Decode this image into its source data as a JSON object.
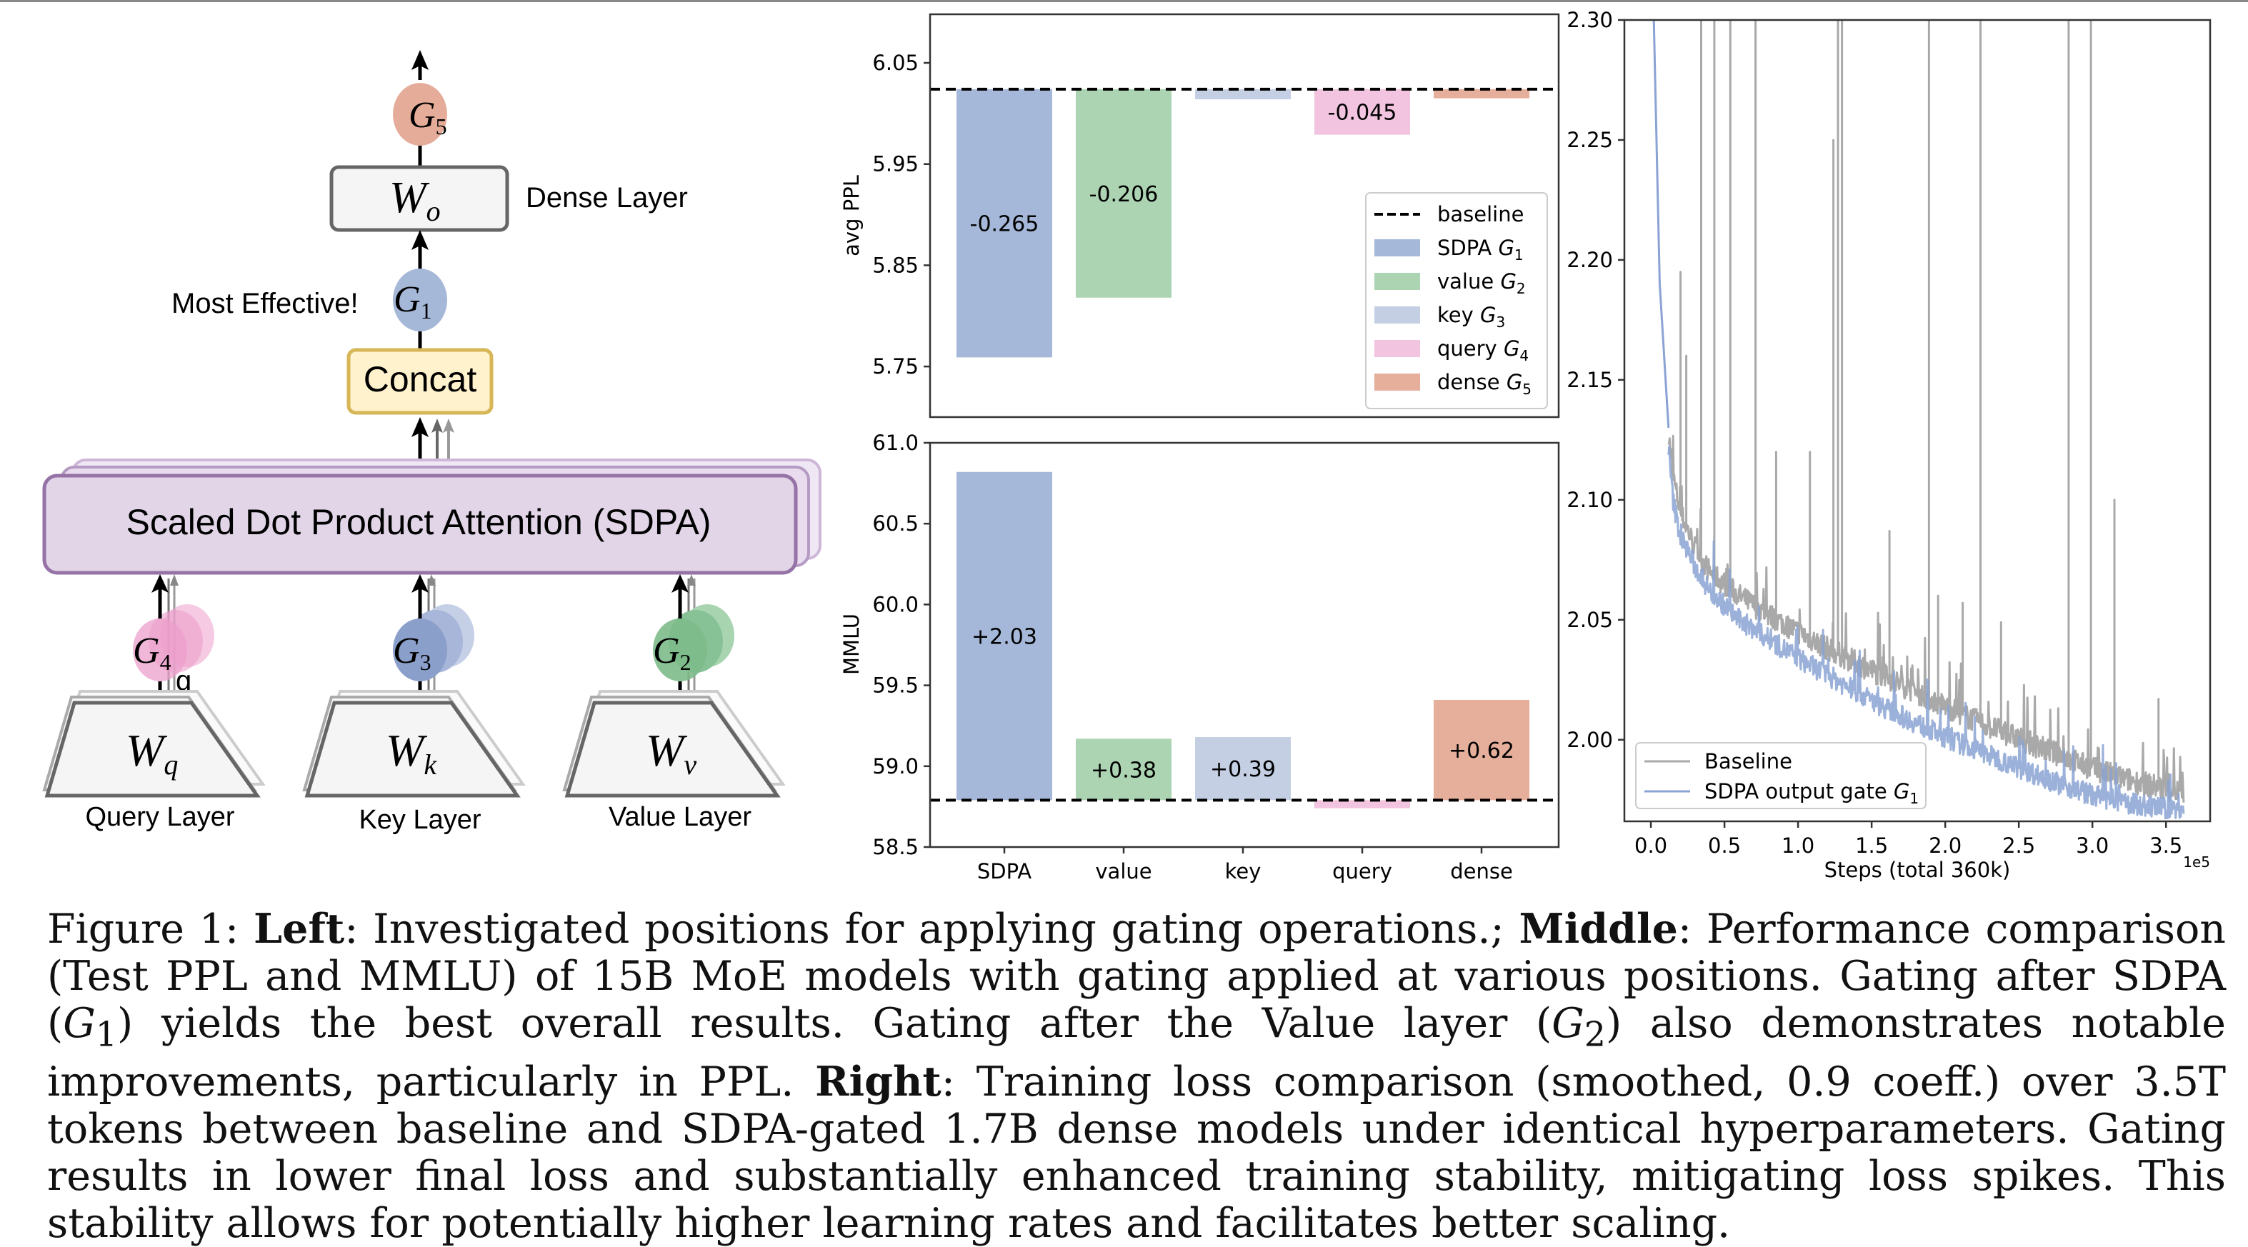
{
  "diagram": {
    "labels": {
      "dense_layer": "Dense Layer",
      "most_effective": "Most Effective!",
      "concat": "Concat",
      "sdpa": "Scaled Dot Product Attention (SDPA)",
      "query_layer": "Query Layer",
      "key_layer": "Key Layer",
      "value_layer": "Value Layer",
      "stray_g": "g"
    },
    "weights": {
      "wo": {
        "base": "W",
        "sub": "o"
      },
      "wq": {
        "base": "W",
        "sub": "q"
      },
      "wk": {
        "base": "W",
        "sub": "k"
      },
      "wv": {
        "base": "W",
        "sub": "v"
      }
    },
    "gates": {
      "g1": {
        "base": "G",
        "sub": "1",
        "color": "#a5b8d8"
      },
      "g2": {
        "base": "G",
        "sub": "2",
        "color": "#7dbb8b"
      },
      "g3": {
        "base": "G",
        "sub": "3",
        "color": "#8b9fcb"
      },
      "g4": {
        "base": "G",
        "sub": "4",
        "color": "#ec9fcb"
      },
      "g5": {
        "base": "G",
        "sub": "5",
        "color": "#e5ac9a"
      }
    },
    "colors": {
      "concat_fill": "#fff2cc",
      "concat_border": "#d6b656",
      "sdpa_fill": "#e1d5e7",
      "sdpa_border": "#9673a6",
      "box_fill": "#f5f5f5",
      "box_border": "#666666"
    }
  },
  "chart_data": [
    {
      "type": "bar",
      "title": "",
      "xlabel": "",
      "ylabel": "avg PPL",
      "categories": [
        "SDPA",
        "value",
        "key",
        "query",
        "dense"
      ],
      "baseline": 6.024,
      "values": [
        5.759,
        5.818,
        6.014,
        5.979,
        6.015
      ],
      "deltas": [
        -0.265,
        -0.206,
        -0.01,
        -0.045,
        -0.009
      ],
      "data_labels": [
        "-0.265",
        "-0.206",
        "",
        "-0.045",
        ""
      ],
      "ylim": [
        5.7,
        6.098
      ],
      "yticks": [
        5.75,
        5.85,
        5.95,
        6.05
      ],
      "ytick_labels": [
        "5.75",
        "5.85",
        "5.95",
        "6.05"
      ],
      "show_xticklabels": false,
      "colors": [
        "#a6b8d9",
        "#acd4b2",
        "#c4cfe3",
        "#f2c4e0",
        "#e6af9b"
      ],
      "legend": {
        "position": "lower-right",
        "entries": [
          {
            "label": "baseline",
            "gate": "",
            "style": "dashed-line",
            "color": "#000000"
          },
          {
            "label": "SDPA",
            "gate": "G",
            "sub": "1",
            "style": "patch",
            "color": "#a6b8d9"
          },
          {
            "label": "value",
            "gate": "G",
            "sub": "2",
            "style": "patch",
            "color": "#acd4b2"
          },
          {
            "label": "key",
            "gate": "G",
            "sub": "3",
            "style": "patch",
            "color": "#c4cfe3"
          },
          {
            "label": "query",
            "gate": "G",
            "sub": "4",
            "style": "patch",
            "color": "#f2c4e0"
          },
          {
            "label": "dense",
            "gate": "G",
            "sub": "5",
            "style": "patch",
            "color": "#e6af9b"
          }
        ]
      }
    },
    {
      "type": "bar",
      "title": "",
      "xlabel": "",
      "ylabel": "MMLU",
      "categories": [
        "SDPA",
        "value",
        "key",
        "query",
        "dense"
      ],
      "baseline": 58.79,
      "values": [
        60.82,
        59.17,
        59.18,
        58.74,
        59.41
      ],
      "deltas": [
        2.03,
        0.38,
        0.39,
        -0.05,
        0.62
      ],
      "data_labels": [
        "+2.03",
        "+0.38",
        "+0.39",
        "",
        "+0.62"
      ],
      "ylim": [
        58.5,
        61.0
      ],
      "yticks": [
        58.5,
        59.0,
        59.5,
        60.0,
        60.5,
        61.0
      ],
      "ytick_labels": [
        "58.5",
        "59.0",
        "59.5",
        "60.0",
        "60.5",
        "61.0"
      ],
      "colors": [
        "#a6b8d9",
        "#acd4b2",
        "#c4cfe3",
        "#f2c4e0",
        "#e6af9b"
      ]
    },
    {
      "type": "line",
      "title": "",
      "xlabel": "Steps (total 360k)",
      "ylabel": "",
      "x_offset_label": "1e5",
      "xlim": [
        -0.18,
        3.8
      ],
      "ylim": [
        1.966,
        2.3
      ],
      "xticks": [
        0.0,
        0.5,
        1.0,
        1.5,
        2.0,
        2.5,
        3.0,
        3.5
      ],
      "xtick_labels": [
        "0.0",
        "0.5",
        "1.0",
        "1.5",
        "2.0",
        "2.5",
        "3.0",
        "3.5"
      ],
      "yticks": [
        2.0,
        2.05,
        2.1,
        2.15,
        2.2,
        2.25,
        2.3
      ],
      "ytick_labels": [
        "2.00",
        "2.05",
        "2.10",
        "2.15",
        "2.20",
        "2.25",
        "2.30"
      ],
      "series": [
        {
          "name": "Baseline",
          "color": "#a9a9a9",
          "x": [
            0.02,
            0.05,
            0.1,
            0.15,
            0.2,
            0.3,
            0.4,
            0.5,
            0.6,
            0.8,
            1.0,
            1.2,
            1.4,
            1.6,
            1.8,
            2.0,
            2.2,
            2.4,
            2.6,
            2.8,
            3.0,
            3.2,
            3.4,
            3.6
          ],
          "y": [
            2.3,
            2.2,
            2.14,
            2.11,
            2.095,
            2.08,
            2.07,
            2.065,
            2.06,
            2.052,
            2.045,
            2.038,
            2.032,
            2.026,
            2.02,
            2.014,
            2.008,
            2.003,
            1.998,
            1.993,
            1.988,
            1.984,
            1.981,
            1.978
          ],
          "spikes": [
            {
              "x": 0.34,
              "y": 2.3
            },
            {
              "x": 0.43,
              "y": 2.3
            },
            {
              "x": 0.54,
              "y": 2.3
            },
            {
              "x": 0.71,
              "y": 2.31
            },
            {
              "x": 1.27,
              "y": 2.31
            },
            {
              "x": 1.3,
              "y": 2.3
            },
            {
              "x": 1.24,
              "y": 2.25
            },
            {
              "x": 1.89,
              "y": 2.3
            },
            {
              "x": 2.24,
              "y": 2.3
            },
            {
              "x": 2.84,
              "y": 2.3
            },
            {
              "x": 2.99,
              "y": 2.3
            },
            {
              "x": 0.2,
              "y": 2.195
            },
            {
              "x": 0.24,
              "y": 2.16
            },
            {
              "x": 1.08,
              "y": 2.12
            },
            {
              "x": 3.15,
              "y": 2.1
            },
            {
              "x": 1.62,
              "y": 2.087
            },
            {
              "x": 2.12,
              "y": 2.057
            },
            {
              "x": 2.38,
              "y": 2.049
            },
            {
              "x": 3.45,
              "y": 2.017
            },
            {
              "x": 0.85,
              "y": 2.12
            },
            {
              "x": 1.95,
              "y": 2.06
            }
          ]
        },
        {
          "name": "SDPA output gate",
          "gate": "G",
          "sub": "1",
          "color": "#8aa3d4",
          "x": [
            0.02,
            0.05,
            0.1,
            0.15,
            0.2,
            0.3,
            0.4,
            0.5,
            0.6,
            0.8,
            1.0,
            1.2,
            1.4,
            1.6,
            1.8,
            2.0,
            2.2,
            2.4,
            2.6,
            2.8,
            3.0,
            3.2,
            3.4,
            3.6
          ],
          "y": [
            2.3,
            2.19,
            2.135,
            2.1,
            2.085,
            2.072,
            2.062,
            2.056,
            2.05,
            2.042,
            2.034,
            2.027,
            2.02,
            2.013,
            2.007,
            2.001,
            1.996,
            1.991,
            1.986,
            1.981,
            1.977,
            1.974,
            1.972,
            1.971
          ]
        }
      ],
      "legend": {
        "position": "lower-left"
      }
    }
  ],
  "caption": {
    "figure_label": "Figure 1:",
    "left_label": "Left",
    "left_text": ": Investigated positions for applying gating operations.;",
    "middle_label": "Middle",
    "middle_text_1": ": Performance comparison (Test PPL and MMLU) of 15B MoE models with gating applied at various positions. Gating after SDPA (",
    "g1": "G",
    "g1_sub": "1",
    "middle_text_2": ") yields the best overall results. Gating after the Value layer (",
    "g2": "G",
    "g2_sub": "2",
    "middle_text_3": ") also demonstrates notable improvements, particularly in PPL.",
    "right_label": "Right",
    "right_text": ": Training loss comparison (smoothed, 0.9 coeff.)  over 3.5T tokens between baseline and SDPA-gated 1.7B dense models under identical hyperparameters. Gating results in lower final loss and substantially enhanced training stability, mitigating loss spikes. This stability allows for potentially higher learning rates and facilitates better scaling."
  }
}
